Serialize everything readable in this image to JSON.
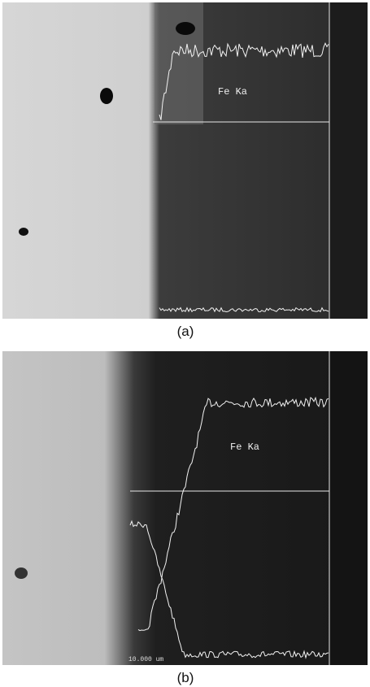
{
  "panels": [
    {
      "label": "(a)",
      "annotation": "Fe Ka"
    },
    {
      "label": "(b)",
      "annotation": "Fe Ka",
      "scale": "10.000 um"
    }
  ]
}
